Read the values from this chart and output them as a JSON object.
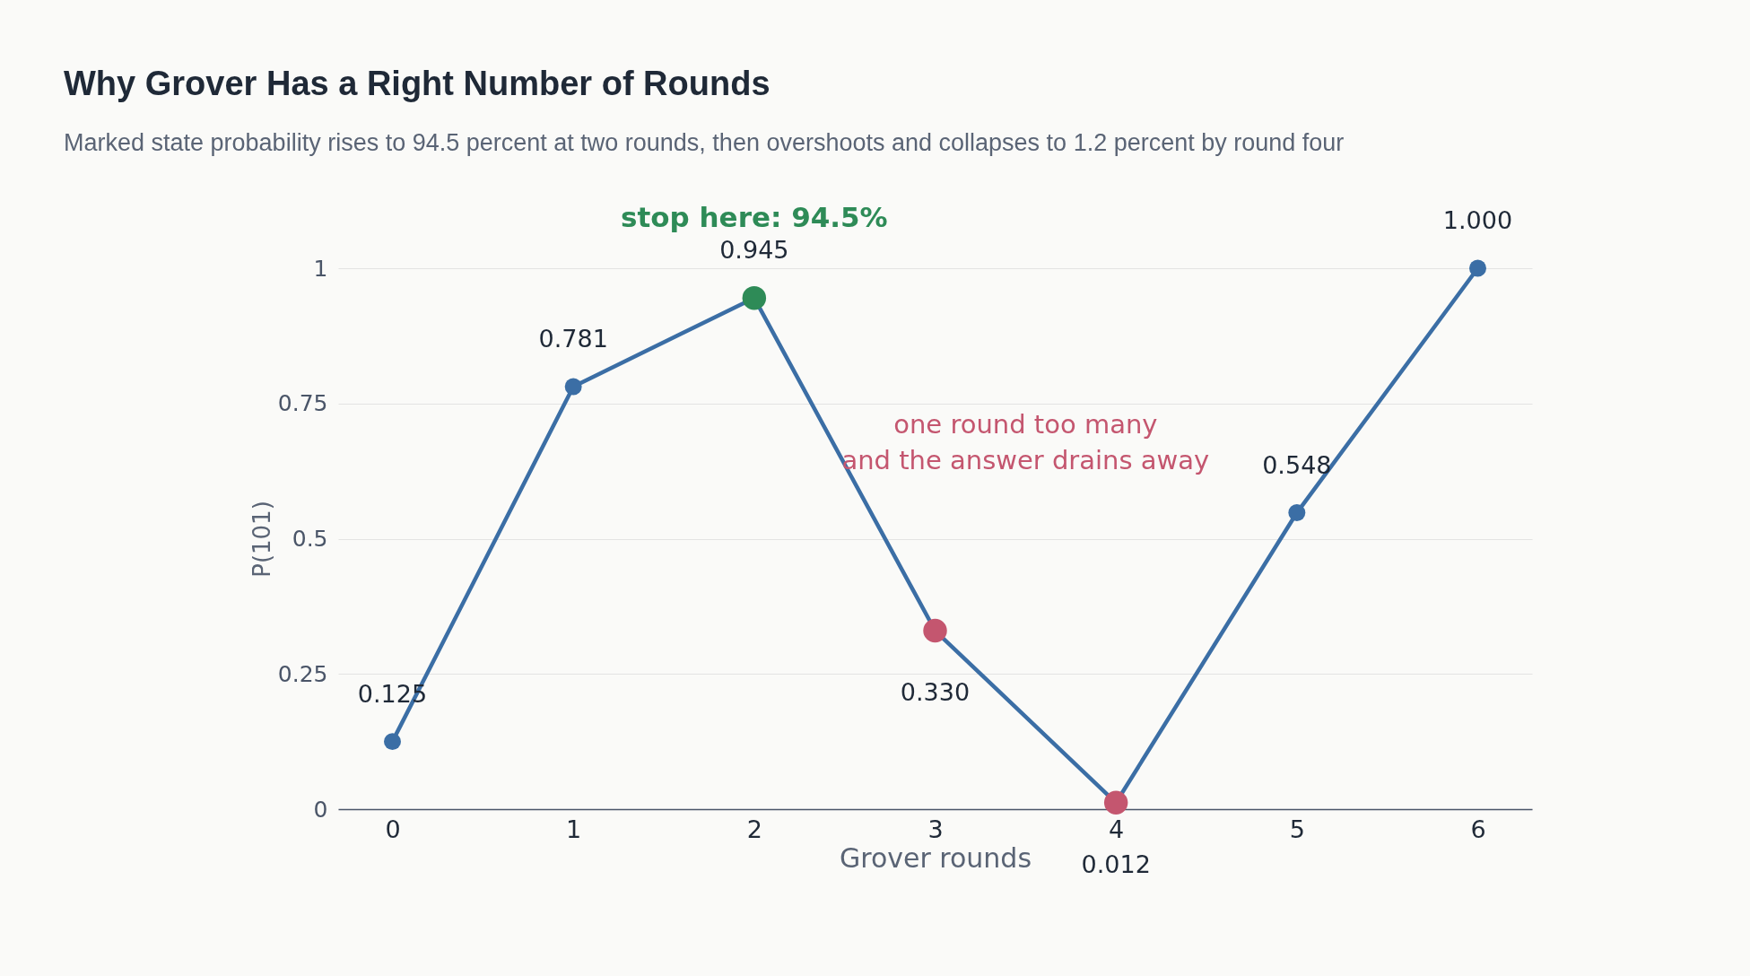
{
  "chart_data": {
    "type": "line",
    "title": "Why Grover Has a Right Number of Rounds",
    "subtitle": "Marked state probability rises to 94.5 percent at two rounds, then overshoots and collapses to 1.2 percent by round four",
    "xlabel": "Grover rounds",
    "ylabel": "P(101)",
    "x": [
      0,
      1,
      2,
      3,
      4,
      5,
      6
    ],
    "series": [
      {
        "color": "#3b6ea5",
        "colors": [
          "#3b6ea5",
          "#3b6ea5",
          "#2e8b57",
          "#c4566f",
          "#c4566f",
          "#3b6ea5",
          "#3b6ea5"
        ],
        "values": [
          0.125,
          0.781,
          0.945,
          0.33,
          0.012,
          0.548,
          1.0
        ],
        "value_labels": [
          "0.125",
          "0.781",
          "0.945",
          "0.330",
          "0.012",
          "0.548",
          "1.000"
        ]
      }
    ],
    "xlim": [
      -0.3,
      6.3
    ],
    "xticks": [
      0,
      1,
      2,
      3,
      4,
      5,
      6
    ],
    "ylim": [
      0,
      1
    ],
    "yticks": [
      0,
      0.25,
      0.5,
      0.75,
      1
    ],
    "grid": "y",
    "marker": "circle",
    "line_style": "solid",
    "annotations": [
      {
        "text": "stop here: 94.5%",
        "x": 2,
        "y": 0.945
      },
      "one round too many\nand the answer drains away"
    ]
  }
}
